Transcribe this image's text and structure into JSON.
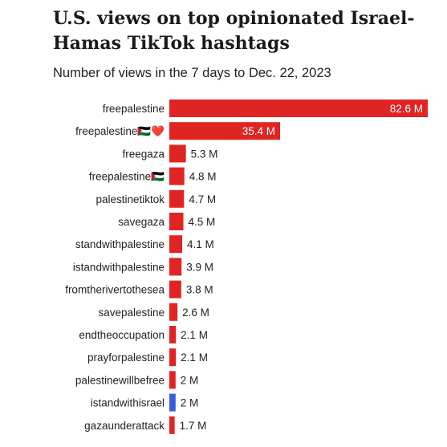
{
  "chart_data": {
    "type": "bar",
    "orientation": "horizontal",
    "title": "U.S. views on top opinionated Israel-Hamas TikTok hashtags",
    "subtitle": "Number of views in the 7 days to Dec. 22, 2023",
    "xlabel": "",
    "ylabel": "",
    "unit_suffix": " M",
    "xlim": [
      0,
      82.6
    ],
    "grid": false,
    "legend": "none",
    "colors": {
      "default": "#e02424",
      "highlight": "#3b5bdb"
    },
    "categories": [
      "freepalestine",
      "freepalestine🇵🇸❤️",
      "freegaza",
      "freepalestine🇵🇸",
      "palestinetiktok",
      "savegaza",
      "standwithpalestine",
      "istandwithpalestine",
      "fromtherivertothesea",
      "savepalestine",
      "endtheoccupation",
      "prayforpalestine",
      "palestinewillbefree",
      "istandwithisrael",
      "gazaunderattack"
    ],
    "values": [
      82.6,
      35.4,
      5.3,
      4.8,
      4.7,
      4.5,
      4.1,
      3.9,
      3.8,
      2.6,
      2.1,
      2.1,
      2,
      2,
      1.7
    ],
    "value_labels": [
      "82.6 M",
      "35.4 M",
      "5.3 M",
      "4.8 M",
      "4.7 M",
      "4.5 M",
      "4.1 M",
      "3.9 M",
      "3.8 M",
      "2.6 M",
      "2.1 M",
      "2.1 M",
      "2 M",
      "2 M",
      "1.7 M"
    ],
    "highlight_index": 13
  }
}
